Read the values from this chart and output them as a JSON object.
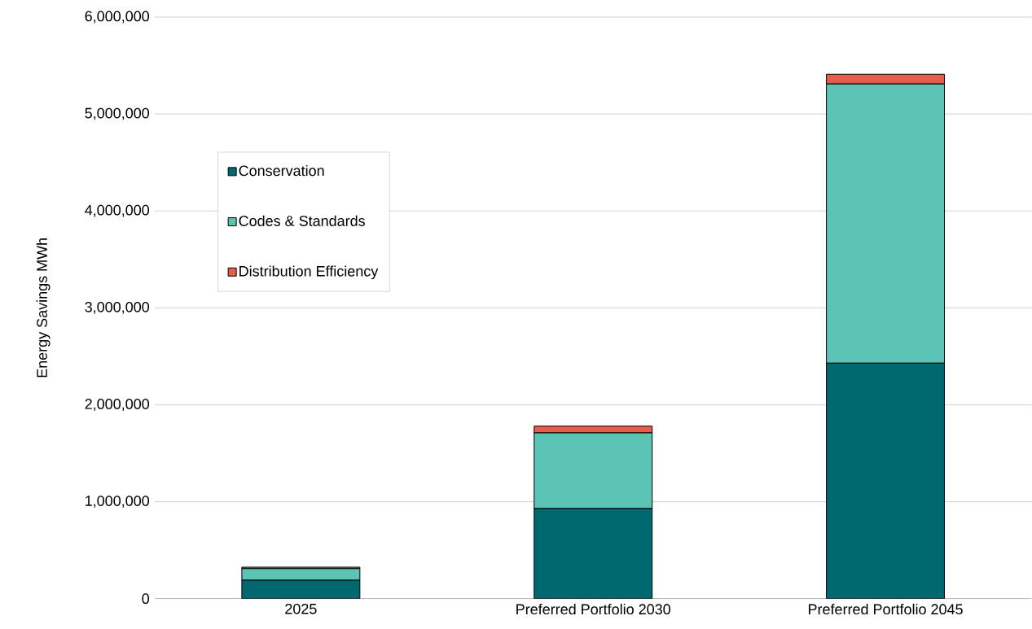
{
  "chart_data": {
    "type": "bar",
    "stacked": true,
    "ylabel": "Energy Savings MWh",
    "categories": [
      "2025",
      "Preferred Portfolio 2030",
      "Preferred Portfolio 2045"
    ],
    "series": [
      {
        "name": "Conservation",
        "color": "#006970",
        "values": [
          190000,
          930000,
          2430000
        ]
      },
      {
        "name": "Codes & Standards",
        "color": "#5bc4b4",
        "values": [
          120000,
          780000,
          2880000
        ]
      },
      {
        "name": "Distribution Efficiency",
        "color": "#e65d4b",
        "values": [
          15000,
          70000,
          100000
        ]
      }
    ],
    "ylim": [
      0,
      6000000
    ],
    "yticks": [
      0,
      {
        "value": 1000000,
        "label": "1,000,000"
      },
      {
        "value": 2000000,
        "label": "2,000,000"
      },
      {
        "value": 3000000,
        "label": "3,000,000"
      },
      {
        "value": 4000000,
        "label": "4,000,000"
      },
      {
        "value": 5000000,
        "label": "5,000,000"
      },
      {
        "value": 6000000,
        "label": "6,000,000"
      }
    ],
    "grid": "y",
    "legend": "top left"
  }
}
